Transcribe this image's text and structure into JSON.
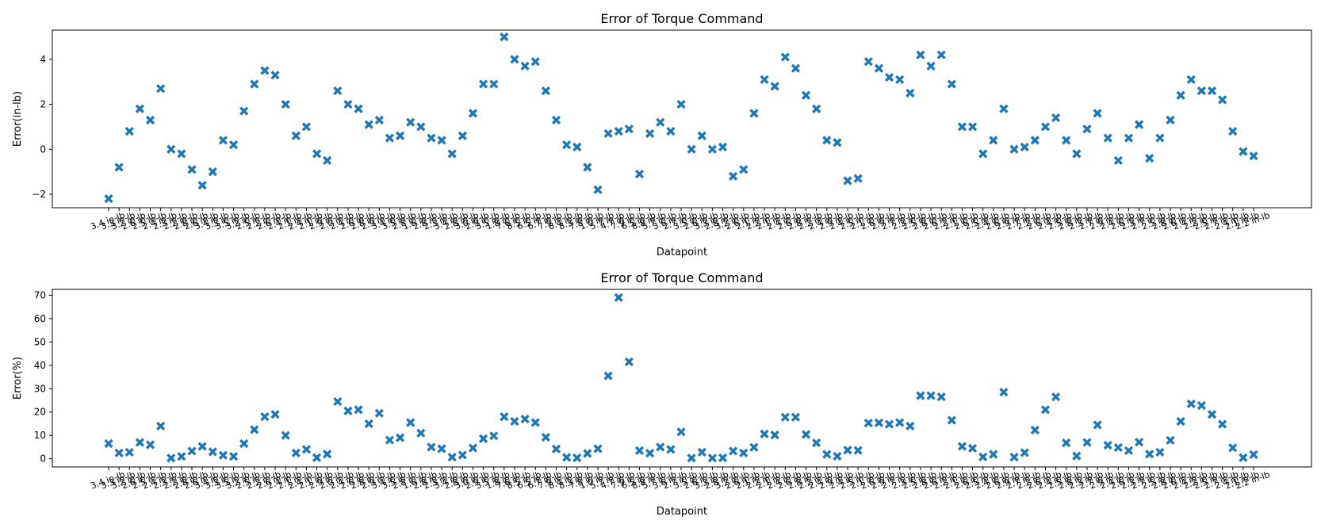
{
  "colors": {
    "marker": "#1f77b4",
    "axes": "#000000",
    "background": "#ffffff"
  },
  "chart_data": [
    {
      "type": "scatter",
      "marker": "X",
      "title": "Error of Torque Command",
      "xlabel": "Datapoint",
      "ylabel": "Error(in-lb)",
      "ylim": [
        -2.6,
        5.3
      ],
      "yticks": [
        -2,
        0,
        2,
        4
      ],
      "values": [
        -2.2,
        -0.8,
        0.8,
        1.8,
        1.3,
        2.7,
        0.0,
        -0.2,
        -0.9,
        -1.6,
        -1.0,
        0.4,
        0.2,
        1.7,
        2.9,
        3.5,
        3.3,
        2.0,
        0.6,
        1.0,
        -0.2,
        -0.5,
        2.6,
        2.0,
        1.8,
        1.1,
        1.3,
        0.5,
        0.6,
        1.2,
        1.0,
        0.5,
        0.4,
        -0.2,
        0.6,
        1.6,
        2.9,
        2.9,
        5.0,
        4.0,
        3.7,
        3.9,
        2.6,
        1.3,
        0.2,
        0.1,
        -0.8,
        -1.8,
        0.7,
        0.8,
        0.9,
        -1.1,
        0.7,
        1.2,
        0.8,
        2.0,
        0.0,
        0.6,
        0.0,
        0.1,
        -1.2,
        -0.9,
        1.6,
        3.1,
        2.8,
        4.1,
        3.6,
        2.4,
        1.8,
        0.4,
        0.3,
        -1.4,
        -1.3,
        3.9,
        3.6,
        3.2,
        3.1,
        2.5,
        4.2,
        3.7,
        4.2,
        2.9,
        1.0,
        1.0,
        -0.2,
        0.4,
        1.8,
        0.0,
        0.1,
        0.4,
        1.0,
        1.4,
        0.4,
        -0.2,
        0.9,
        1.6,
        0.5,
        -0.5,
        0.5,
        1.1,
        -0.4,
        0.5,
        1.3,
        2.4,
        3.1,
        2.6,
        2.6,
        2.2,
        0.8,
        -0.1,
        -0.3
      ]
    },
    {
      "type": "scatter",
      "marker": "X",
      "title": "Error of Torque Command",
      "xlabel": "Datapoint",
      "ylabel": "Error(%)",
      "ylim": [
        -3.5,
        72.5
      ],
      "yticks": [
        0,
        10,
        20,
        30,
        40,
        50,
        60,
        70
      ],
      "values": [
        6.5,
        2.5,
        2.8,
        7.0,
        6.0,
        14.0,
        0.3,
        1.0,
        3.3,
        5.3,
        3.0,
        1.5,
        1.0,
        6.5,
        12.5,
        18.0,
        19.0,
        10.0,
        2.5,
        4.0,
        0.5,
        2.0,
        24.5,
        20.5,
        21.0,
        15.0,
        19.5,
        8.0,
        9.0,
        15.5,
        11.0,
        5.0,
        4.3,
        0.7,
        1.6,
        4.6,
        8.6,
        9.8,
        18.0,
        16.0,
        17.0,
        15.5,
        9.2,
        4.2,
        0.6,
        0.4,
        2.3,
        4.3,
        35.5,
        69.0,
        41.5,
        3.5,
        2.4,
        5.0,
        4.0,
        11.5,
        0.3,
        2.8,
        0.3,
        0.4,
        3.3,
        2.5,
        4.9,
        10.6,
        10.2,
        17.8,
        17.8,
        10.4,
        6.8,
        1.9,
        1.1,
        3.7,
        3.6,
        15.3,
        15.4,
        14.8,
        15.5,
        14.0,
        27.0,
        27.0,
        26.5,
        16.5,
        5.3,
        4.5,
        0.8,
        1.9,
        28.5,
        0.7,
        2.6,
        12.3,
        21.0,
        26.5,
        6.8,
        1.2,
        7.0,
        14.5,
        5.8,
        4.8,
        3.5,
        7.1,
        2.0,
        2.8,
        7.9,
        16.0,
        23.5,
        22.8,
        19.0,
        14.8,
        4.7,
        0.5,
        1.8
      ]
    }
  ],
  "xtick_labels": [
    "3.4 in-lb",
    "3.3 in-lb",
    "3.2 in-lb",
    "2.6 in-lb",
    "2.5 in-lb",
    "2.4 in-lb",
    "2.3 in-lb",
    "2.2 in-lb",
    "2.8 in-lb",
    "2.6 in-lb",
    "3.4 in-lb",
    "3.3 in-lb",
    "3.5 in-lb",
    "3.2 in-lb",
    "2.5 in-lb",
    "2.2 in-lb",
    "2.6 in-lb",
    "2.4 in-lb",
    "2.1 in-lb",
    "2.4 in-lb",
    "2.1 in-lb",
    "2.9 in-lb",
    "2.0 in-lb",
    "2.4 in-lb",
    "2.6 in-lb",
    "2.8 in-lb",
    "2.9 in-lb",
    "3.4 in-lb",
    "3.5 in-lb",
    "2.8 in-lb",
    "1.6 in-lb",
    "2.8 in-lb",
    "2.3 in-lb",
    "3.4 in-lb",
    "2.8 in-lb",
    "3.0 in-lb",
    "2.9 in-lb",
    "3.5 in-lb",
    "1.8 in-lb",
    "7.6 in-lb",
    "8.5 in-lb",
    "6.5 in-lb",
    "6.7 in-lb",
    "7.9 in-lb",
    "8.4 in-lb",
    "8.3 in-lb",
    "7.8 in-lb",
    "1.0 in-lb",
    "5.7 in-lb",
    "4.7 in-lb",
    "7.9 in-lb",
    "6.5 in-lb",
    "8.8 in-lb",
    "5.7 in-lb",
    "3.6 in-lb",
    "2.7 in-lb",
    "3.5 in-lb",
    "2.6 in-lb",
    "3.3 in-lb",
    "2.8 in-lb",
    "3.2 in-lb",
    "2.6 in-lb",
    "2.1 in-lb",
    "2.2 in-lb",
    "2.1 in-lb",
    "2.4 in-lb",
    "2.6 in-lb",
    "2.8 in-lb",
    "2.2 in-lb",
    "2.4 in-lb",
    "2.9 in-lb",
    "2.4 in-lb",
    "2.5 in-lb",
    "2.1 in-lb",
    "2.6 in-lb",
    "2.9 in-lb",
    "2.7 in-lb",
    "2.3 in-lb",
    "2.5 in-lb",
    "2.8 in-lb",
    "2.6 in-lb",
    "2.2 in-lb",
    "2.1 in-lb",
    "2.6 in-lb",
    "2.5 in-lb",
    "2.4 in-lb",
    "2.6 in-lb",
    "2.9 in-lb",
    "2.7 in-lb",
    "2.2 in-lb",
    "2.6 in-lb",
    "2.4 in-lb",
    "2.5 in-lb",
    "2.8 in-lb",
    "2.3 in-lb",
    "2.7 in-lb",
    "2.9 in-lb",
    "2.4 in-lb",
    "2.6 in-lb",
    "2.3 in-lb",
    "2.7 in-lb",
    "2.5 in-lb",
    "2.8 in-lb",
    "2.6 in-lb",
    "2.4 in-lb",
    "2.2 in-lb",
    "2.5 in-lb",
    "2.7 in-lb",
    "2.4 in-lb",
    "2.1 in-lb",
    "2.2 in-lb"
  ]
}
